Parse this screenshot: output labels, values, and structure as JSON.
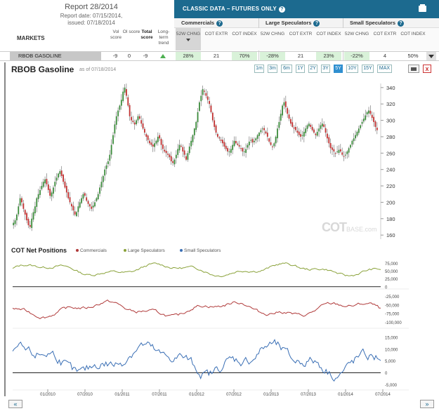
{
  "report": {
    "title": "Report 28/2014",
    "report_date": "Report date: 07/15/2014,",
    "issued_date": "issued: 07/18/2014"
  },
  "table": {
    "markets_label": "MARKETS",
    "columns": {
      "vol": "Vol score",
      "oi": "OI score",
      "total": "Total score",
      "trend": "Long-term trend"
    },
    "classic_title": "CLASSIC DATA – FUTURES ONLY",
    "help_glyph": "?",
    "groups": [
      "Commercials",
      "Large Speculators",
      "Small Speculators"
    ],
    "subheads": [
      "52W CHNG",
      "COT EXTR",
      "COT INDEX"
    ],
    "row": {
      "name": "RBOB GASOLINE",
      "vol": "-9",
      "oi": "0",
      "total": "-9",
      "commercials": [
        "28%",
        "21",
        "70%"
      ],
      "large": [
        "-28%",
        "21",
        "23%"
      ],
      "small": [
        "-22%",
        "4",
        "50%"
      ]
    }
  },
  "chart": {
    "title": "RBOB Gasoline",
    "as_of": "as of 07/18/2014",
    "ranges": [
      "1m",
      "3m",
      "6m",
      "1Y",
      "2Y",
      "3Y",
      "5Y",
      "10Y",
      "15Y",
      "MAX"
    ],
    "active_range": "5Y",
    "close_glyph": "x",
    "watermark": "COT",
    "watermark_sub": "BASE.com",
    "cot_title": "COT Net Positions",
    "legend": [
      {
        "name": "Commercials",
        "color": "#b03a3a"
      },
      {
        "name": "Large Speculators",
        "color": "#8aa23a"
      },
      {
        "name": "Small Speculators",
        "color": "#3a6fb5"
      }
    ],
    "nav_left": "«",
    "nav_right": "»"
  },
  "chart_data": [
    {
      "type": "candlestick",
      "title": "RBOB Gasoline",
      "y_ticks": [
        160,
        180,
        200,
        220,
        240,
        260,
        280,
        300,
        320,
        340
      ],
      "ylim": [
        155,
        345
      ],
      "x_ticks": [
        "01/2010",
        "07/2010",
        "01/2011",
        "07/2011",
        "01/2012",
        "07/2012",
        "01/2013",
        "07/2013",
        "01/2014",
        "07/2014"
      ],
      "close_by_week": [
        175,
        178,
        185,
        195,
        205,
        200,
        192,
        185,
        178,
        172,
        170,
        180,
        188,
        195,
        205,
        210,
        215,
        220,
        225,
        228,
        222,
        215,
        208,
        212,
        218,
        225,
        230,
        235,
        238,
        232,
        225,
        218,
        212,
        205,
        200,
        195,
        190,
        185,
        188,
        195,
        200,
        205,
        210,
        208,
        202,
        198,
        195,
        192,
        196,
        200,
        205,
        210,
        218,
        225,
        232,
        240,
        245,
        250,
        258,
        270,
        282,
        295,
        305,
        312,
        318,
        325,
        335,
        340,
        330,
        318,
        305,
        300,
        298,
        295,
        300,
        305,
        302,
        296,
        290,
        285,
        280,
        276,
        272,
        270,
        268,
        272,
        275,
        280,
        278,
        270,
        265,
        262,
        260,
        258,
        255,
        250,
        248,
        252,
        258,
        265,
        270,
        268,
        262,
        258,
        252,
        260,
        268,
        275,
        282,
        290,
        298,
        310,
        322,
        330,
        338,
        335,
        330,
        325,
        320,
        310,
        300,
        292,
        285,
        280,
        278,
        275,
        272,
        268,
        265,
        262,
        262,
        265,
        270,
        275,
        272,
        270,
        268,
        266,
        262,
        262,
        265,
        270,
        274,
        276,
        273,
        275,
        278,
        282,
        285,
        288,
        290,
        288,
        284,
        280,
        274,
        270,
        268,
        272,
        280,
        290,
        298,
        308,
        318,
        322,
        316,
        308,
        302,
        296,
        292,
        290,
        288,
        285,
        282,
        280,
        282,
        286,
        290,
        294,
        296,
        292,
        288,
        285,
        282,
        286,
        290,
        294,
        296,
        292,
        285,
        278,
        272,
        266,
        264,
        262,
        260,
        262,
        264,
        262,
        258,
        256,
        258,
        262,
        266,
        270,
        275,
        278,
        282,
        286,
        290,
        294,
        298,
        302,
        306,
        310,
        312,
        308,
        303,
        298,
        292,
        288
      ]
    },
    {
      "type": "line",
      "title": "COT Net Positions",
      "series": [
        {
          "name": "Large Speculators",
          "y_ticks": [
            0,
            25000,
            50000,
            75000
          ],
          "tick_labels": [
            "0",
            "25,000",
            "50,000",
            "75,000"
          ]
        },
        {
          "name": "Commercials",
          "y_ticks": [
            -25000,
            -50000,
            -75000,
            -100000
          ],
          "tick_labels": [
            "-25,000",
            "-50,000",
            "-75,000",
            "-100,000"
          ]
        },
        {
          "name": "Small Speculators",
          "y_ticks": [
            -5000,
            0,
            5000,
            10000,
            15000
          ],
          "tick_labels": [
            "-5,000",
            "0",
            "5,000",
            "10,000",
            "15,000"
          ]
        }
      ]
    }
  ]
}
